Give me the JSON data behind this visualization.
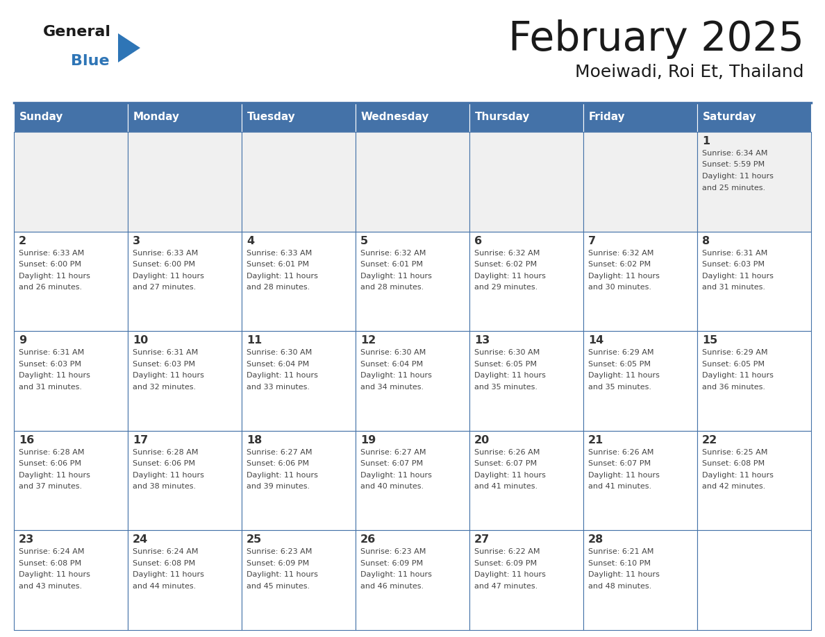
{
  "title": "February 2025",
  "subtitle": "Moeiwadi, Roi Et, Thailand",
  "days_of_week": [
    "Sunday",
    "Monday",
    "Tuesday",
    "Wednesday",
    "Thursday",
    "Friday",
    "Saturday"
  ],
  "header_bg": "#4472a8",
  "header_text": "#ffffff",
  "cell_bg_row0": "#f0f0f0",
  "cell_bg_other": "#ffffff",
  "border_color": "#4472a8",
  "grid_line_color": "#c0c0c0",
  "day_num_color": "#333333",
  "text_color": "#444444",
  "title_color": "#1a1a1a",
  "subtitle_color": "#1a1a1a",
  "logo_general_color": "#1a1a1a",
  "logo_blue_color": "#2e75b6",
  "logo_triangle_color": "#2e75b6",
  "calendar_data": [
    [
      {
        "day": 0,
        "info": ""
      },
      {
        "day": 0,
        "info": ""
      },
      {
        "day": 0,
        "info": ""
      },
      {
        "day": 0,
        "info": ""
      },
      {
        "day": 0,
        "info": ""
      },
      {
        "day": 0,
        "info": ""
      },
      {
        "day": 1,
        "info": "Sunrise: 6:34 AM\nSunset: 5:59 PM\nDaylight: 11 hours\nand 25 minutes."
      }
    ],
    [
      {
        "day": 2,
        "info": "Sunrise: 6:33 AM\nSunset: 6:00 PM\nDaylight: 11 hours\nand 26 minutes."
      },
      {
        "day": 3,
        "info": "Sunrise: 6:33 AM\nSunset: 6:00 PM\nDaylight: 11 hours\nand 27 minutes."
      },
      {
        "day": 4,
        "info": "Sunrise: 6:33 AM\nSunset: 6:01 PM\nDaylight: 11 hours\nand 28 minutes."
      },
      {
        "day": 5,
        "info": "Sunrise: 6:32 AM\nSunset: 6:01 PM\nDaylight: 11 hours\nand 28 minutes."
      },
      {
        "day": 6,
        "info": "Sunrise: 6:32 AM\nSunset: 6:02 PM\nDaylight: 11 hours\nand 29 minutes."
      },
      {
        "day": 7,
        "info": "Sunrise: 6:32 AM\nSunset: 6:02 PM\nDaylight: 11 hours\nand 30 minutes."
      },
      {
        "day": 8,
        "info": "Sunrise: 6:31 AM\nSunset: 6:03 PM\nDaylight: 11 hours\nand 31 minutes."
      }
    ],
    [
      {
        "day": 9,
        "info": "Sunrise: 6:31 AM\nSunset: 6:03 PM\nDaylight: 11 hours\nand 31 minutes."
      },
      {
        "day": 10,
        "info": "Sunrise: 6:31 AM\nSunset: 6:03 PM\nDaylight: 11 hours\nand 32 minutes."
      },
      {
        "day": 11,
        "info": "Sunrise: 6:30 AM\nSunset: 6:04 PM\nDaylight: 11 hours\nand 33 minutes."
      },
      {
        "day": 12,
        "info": "Sunrise: 6:30 AM\nSunset: 6:04 PM\nDaylight: 11 hours\nand 34 minutes."
      },
      {
        "day": 13,
        "info": "Sunrise: 6:30 AM\nSunset: 6:05 PM\nDaylight: 11 hours\nand 35 minutes."
      },
      {
        "day": 14,
        "info": "Sunrise: 6:29 AM\nSunset: 6:05 PM\nDaylight: 11 hours\nand 35 minutes."
      },
      {
        "day": 15,
        "info": "Sunrise: 6:29 AM\nSunset: 6:05 PM\nDaylight: 11 hours\nand 36 minutes."
      }
    ],
    [
      {
        "day": 16,
        "info": "Sunrise: 6:28 AM\nSunset: 6:06 PM\nDaylight: 11 hours\nand 37 minutes."
      },
      {
        "day": 17,
        "info": "Sunrise: 6:28 AM\nSunset: 6:06 PM\nDaylight: 11 hours\nand 38 minutes."
      },
      {
        "day": 18,
        "info": "Sunrise: 6:27 AM\nSunset: 6:06 PM\nDaylight: 11 hours\nand 39 minutes."
      },
      {
        "day": 19,
        "info": "Sunrise: 6:27 AM\nSunset: 6:07 PM\nDaylight: 11 hours\nand 40 minutes."
      },
      {
        "day": 20,
        "info": "Sunrise: 6:26 AM\nSunset: 6:07 PM\nDaylight: 11 hours\nand 41 minutes."
      },
      {
        "day": 21,
        "info": "Sunrise: 6:26 AM\nSunset: 6:07 PM\nDaylight: 11 hours\nand 41 minutes."
      },
      {
        "day": 22,
        "info": "Sunrise: 6:25 AM\nSunset: 6:08 PM\nDaylight: 11 hours\nand 42 minutes."
      }
    ],
    [
      {
        "day": 23,
        "info": "Sunrise: 6:24 AM\nSunset: 6:08 PM\nDaylight: 11 hours\nand 43 minutes."
      },
      {
        "day": 24,
        "info": "Sunrise: 6:24 AM\nSunset: 6:08 PM\nDaylight: 11 hours\nand 44 minutes."
      },
      {
        "day": 25,
        "info": "Sunrise: 6:23 AM\nSunset: 6:09 PM\nDaylight: 11 hours\nand 45 minutes."
      },
      {
        "day": 26,
        "info": "Sunrise: 6:23 AM\nSunset: 6:09 PM\nDaylight: 11 hours\nand 46 minutes."
      },
      {
        "day": 27,
        "info": "Sunrise: 6:22 AM\nSunset: 6:09 PM\nDaylight: 11 hours\nand 47 minutes."
      },
      {
        "day": 28,
        "info": "Sunrise: 6:21 AM\nSunset: 6:10 PM\nDaylight: 11 hours\nand 48 minutes."
      },
      {
        "day": 0,
        "info": ""
      }
    ]
  ]
}
